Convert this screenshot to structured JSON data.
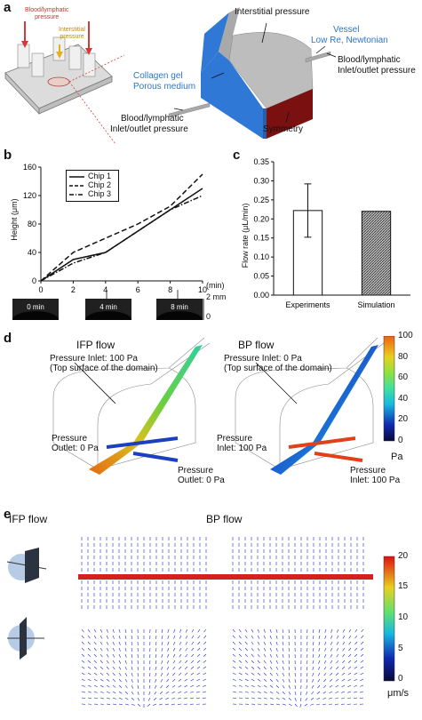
{
  "panel_labels": {
    "a": "a",
    "b": "b",
    "c": "c",
    "d": "d",
    "e": "e"
  },
  "panel_a": {
    "chip_labels": {
      "bl": "Blood/lymphatic\npressure",
      "interstitial": "Interstitial\npressure"
    },
    "interstitial_pressure": "Interstitial pressure",
    "vessel": "Vessel",
    "vessel_sub": "Low Re, Newtonian",
    "collagen": "Collagen gel",
    "collagen_sub": "Porous medium",
    "bl_right_1": "Blood/lymphatic",
    "bl_right_2": "Inlet/outlet pressure",
    "bl_left_1": "Blood/lymphatic",
    "bl_left_2": "Inlet/outlet pressure",
    "symmetry": "Symmetry",
    "colors": {
      "gel": "#2f78d6",
      "gray": "#a9a9a9",
      "dark_red": "#7a1010"
    }
  },
  "panel_b": {
    "ylabel": "Height (μm)",
    "xunit": "(min)",
    "yticks": [
      "160",
      "120",
      "80",
      "40",
      "0"
    ],
    "xticks": [
      "0",
      "2",
      "4",
      "6",
      "8",
      "10"
    ],
    "scale_top": "2 mm",
    "scale_bottom": "0",
    "legend": [
      "Chip 1",
      "Chip 2",
      "Chip 3"
    ],
    "images": [
      "0 min",
      "4 min",
      "8 min"
    ]
  },
  "panel_c": {
    "ylabel": "Flow rate (μL/min)",
    "yticks": [
      "0.35",
      "0.30",
      "0.25",
      "0.20",
      "0.15",
      "0.10",
      "0.05",
      "0.00"
    ],
    "categories": [
      "Experiments",
      "Simulation"
    ]
  },
  "panel_d": {
    "ifp_title": "IFP flow",
    "bp_title": "BP flow",
    "ifp_inlet_1": "Pressure Inlet: 100 Pa",
    "ifp_inlet_2": "(Top surface of the domain)",
    "bp_inlet_1": "Pressure Inlet: 0 Pa",
    "bp_inlet_2": "(Top surface of the domain)",
    "ifp_outlet_left_1": "Pressure",
    "ifp_outlet_left_2": "Outlet: 0 Pa",
    "ifp_outlet_right_1": "Pressure",
    "ifp_outlet_right_2": "Outlet: 0 Pa",
    "bp_inlet_left_1": "Pressure",
    "bp_inlet_left_2": "Inlet: 100 Pa",
    "bp_inlet_right_1": "Pressure",
    "bp_inlet_right_2": "Inlet: 100 Pa",
    "colorbar_ticks": [
      "100",
      "80",
      "60",
      "40",
      "20",
      "0"
    ],
    "colorbar_unit": "Pa"
  },
  "panel_e": {
    "ifp_title": "IFP flow",
    "bp_title": "BP flow",
    "colorbar_ticks": [
      "20",
      "15",
      "10",
      "5",
      "0"
    ],
    "colorbar_unit": "μm/s"
  },
  "chart_data": [
    {
      "type": "line",
      "title": "",
      "xlabel": "(min)",
      "ylabel": "Height (μm)",
      "xlim": [
        0,
        10
      ],
      "ylim": [
        0,
        160
      ],
      "grid": false,
      "legend_position": "top-left",
      "series": [
        {
          "name": "Chip 1",
          "style": "solid",
          "x": [
            0,
            2,
            4,
            6,
            8,
            10
          ],
          "y": [
            0,
            30,
            40,
            70,
            100,
            130
          ]
        },
        {
          "name": "Chip 2",
          "style": "dashed",
          "x": [
            0,
            2,
            4,
            6,
            8,
            10
          ],
          "y": [
            0,
            40,
            60,
            80,
            105,
            150
          ]
        },
        {
          "name": "Chip 3",
          "style": "dash-dot",
          "x": [
            0,
            2,
            4,
            6,
            8,
            10
          ],
          "y": [
            0,
            25,
            40,
            70,
            100,
            120
          ]
        }
      ]
    },
    {
      "type": "bar",
      "title": "",
      "xlabel": "",
      "ylabel": "Flow rate (μL/min)",
      "ylim": [
        0,
        0.35
      ],
      "grid": false,
      "categories": [
        "Experiments",
        "Simulation"
      ],
      "values": [
        0.222,
        0.22
      ],
      "errors": [
        0.07,
        0
      ],
      "fills": [
        "white",
        "hatched"
      ]
    }
  ]
}
